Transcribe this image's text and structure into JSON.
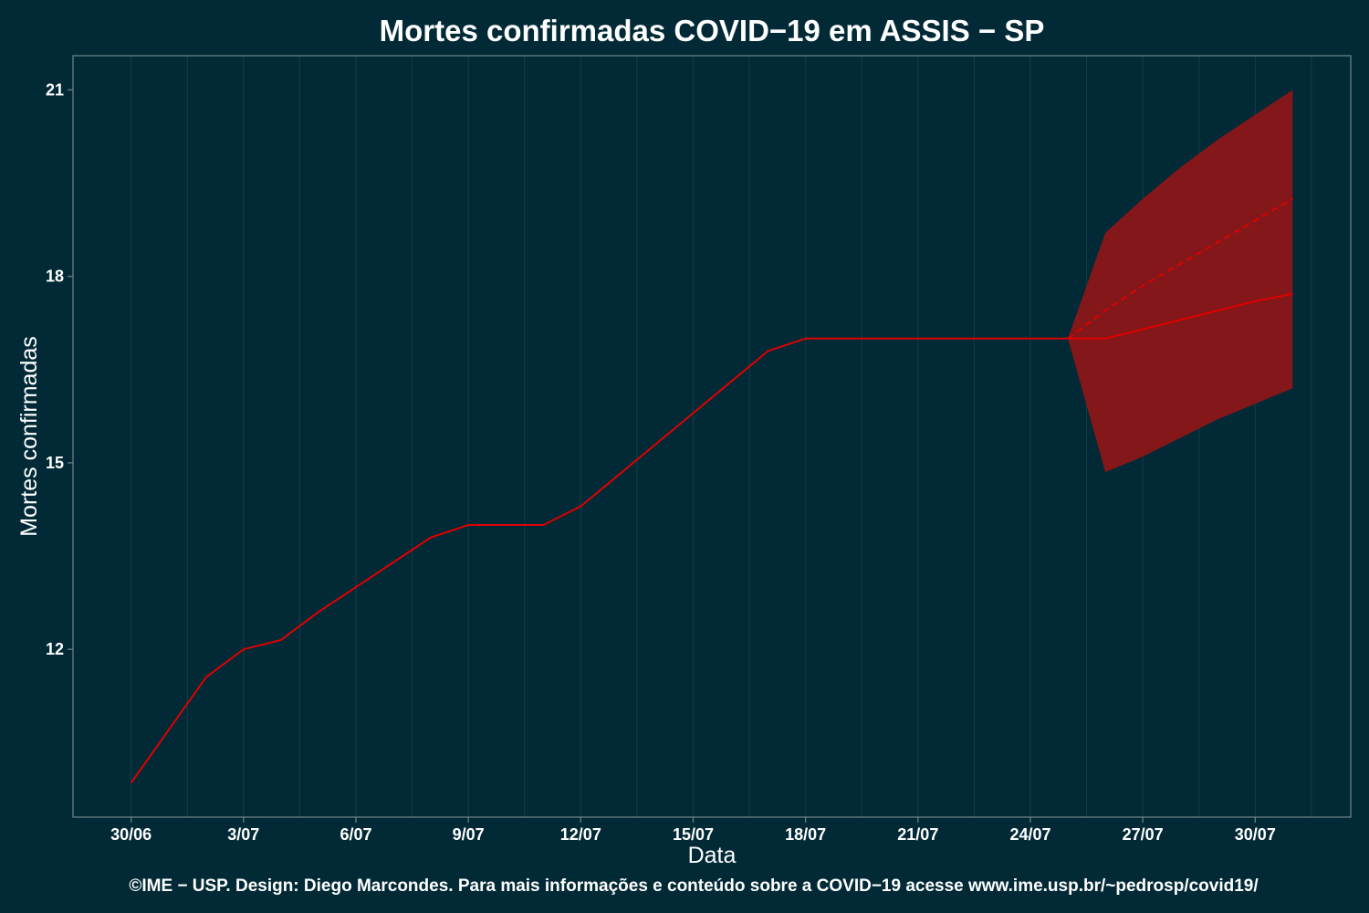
{
  "chart_data": {
    "type": "line",
    "title": "Mortes confirmadas COVID−19 em ASSIS − SP",
    "xlabel": "Data",
    "ylabel": "Mortes confirmadas",
    "caption": "©IME − USP. Design: Diego Marcondes. Para mais informações e conteúdo sobre a COVID−19 acesse www.ime.usp.br/~pedrosp/covid19/",
    "x_ticks": [
      "30/06",
      "3/07",
      "6/07",
      "9/07",
      "12/07",
      "15/07",
      "18/07",
      "21/07",
      "24/07",
      "27/07",
      "30/07"
    ],
    "y_ticks": [
      12,
      15,
      18,
      21
    ],
    "xlim_days": [
      -1.55,
      32.55
    ],
    "ylim": [
      9.3,
      21.55
    ],
    "grid": true,
    "series": [
      {
        "role": "observed",
        "x": [
          "30/06",
          "1/07",
          "2/07",
          "3/07",
          "4/07",
          "5/07",
          "6/07",
          "7/07",
          "8/07",
          "9/07",
          "10/07",
          "11/07",
          "12/07",
          "13/07",
          "14/07",
          "15/07",
          "16/07",
          "17/07",
          "18/07",
          "19/07",
          "20/07",
          "21/07",
          "22/07",
          "23/07",
          "24/07",
          "25/07"
        ],
        "values": [
          9.85,
          10.7,
          11.55,
          12.0,
          12.15,
          12.6,
          13.0,
          13.4,
          13.8,
          14.0,
          14.0,
          14.0,
          14.3,
          14.8,
          15.3,
          15.8,
          16.3,
          16.8,
          17.0,
          17.0,
          17.0,
          17.0,
          17.0,
          17.0,
          17.0,
          17.0
        ]
      },
      {
        "role": "forecast",
        "x": [
          "25/07",
          "26/07",
          "27/07",
          "28/07",
          "29/07",
          "30/07",
          "31/07"
        ],
        "values": [
          17.0,
          17.0,
          17.15,
          17.3,
          17.45,
          17.6,
          17.72
        ]
      },
      {
        "role": "forecast-dashed",
        "x": [
          "25/07",
          "26/07",
          "27/07",
          "28/07",
          "29/07",
          "30/07",
          "31/07"
        ],
        "values": [
          17.0,
          17.45,
          17.85,
          18.2,
          18.55,
          18.9,
          19.25
        ]
      }
    ],
    "band": {
      "x": [
        "25/07",
        "26/07",
        "27/07",
        "28/07",
        "29/07",
        "30/07",
        "31/07"
      ],
      "lower": [
        17.0,
        14.85,
        15.1,
        15.4,
        15.7,
        15.95,
        16.2
      ],
      "upper": [
        17.0,
        18.7,
        19.25,
        19.75,
        20.2,
        20.6,
        21.0
      ]
    },
    "colors": {
      "background": "#012a36",
      "grid": "#0f3b46",
      "frame": "#6b7f84",
      "line": "#e00000",
      "band": "#831719"
    }
  }
}
